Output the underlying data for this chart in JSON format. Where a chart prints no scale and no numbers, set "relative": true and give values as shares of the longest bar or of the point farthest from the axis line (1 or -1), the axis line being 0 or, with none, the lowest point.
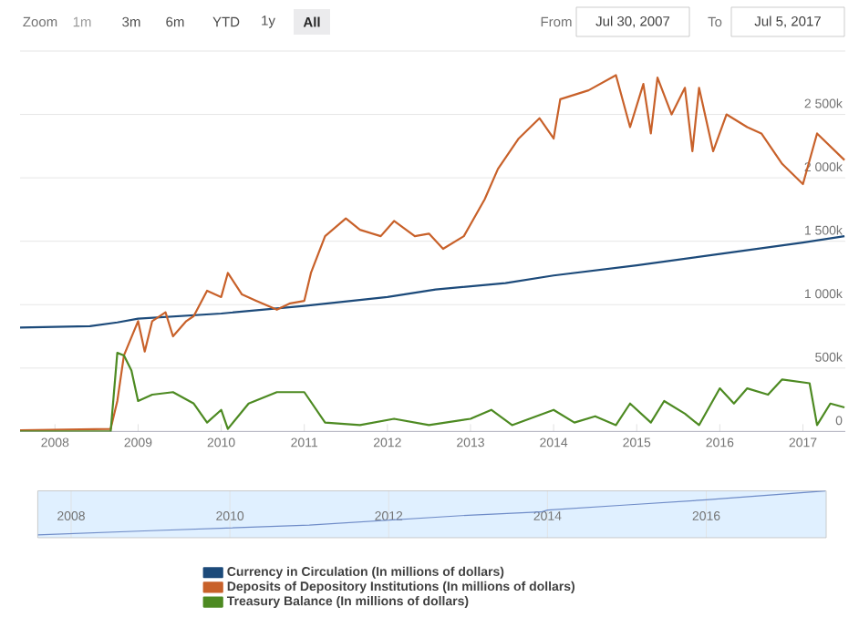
{
  "chart_data": [
    {
      "type": "line",
      "xlim": [
        "2007-07-30",
        "2017-07-05"
      ],
      "ylim": [
        0,
        3000000
      ],
      "xticks": [
        "2008",
        "2009",
        "2010",
        "2011",
        "2012",
        "2013",
        "2014",
        "2015",
        "2016",
        "2017"
      ],
      "yticks": [
        {
          "value": 0,
          "label": "0"
        },
        {
          "value": 500000,
          "label": "500k"
        },
        {
          "value": 1000000,
          "label": "1 000k"
        },
        {
          "value": 1500000,
          "label": "1 500k"
        },
        {
          "value": 2000000,
          "label": "2 000k"
        },
        {
          "value": 2500000,
          "label": "2 500k"
        },
        {
          "value": 3000000,
          "label": null
        }
      ],
      "grid": "y",
      "legend": "bottom",
      "annotations": [
        "Zoom",
        "1m",
        "3m",
        "6m",
        "YTD",
        "1y",
        "All",
        "From",
        "Jul 30, 2007",
        "To",
        "Jul 5, 2017"
      ],
      "series": [
        {
          "name": "Currency in Circulation (In millions of dollars)",
          "color": "#1c4a7a",
          "x": [
            "2007-08",
            "2008-06",
            "2008-10",
            "2009-01",
            "2010-01",
            "2011-01",
            "2012-01",
            "2012-08",
            "2013-06",
            "2014-01",
            "2015-01",
            "2016-01",
            "2017-01",
            "2017-07"
          ],
          "values": [
            820000,
            830000,
            860000,
            890000,
            930000,
            990000,
            1060000,
            1120000,
            1170000,
            1230000,
            1310000,
            1400000,
            1490000,
            1540000
          ]
        },
        {
          "name": "Deposits of Depository Institutions (In millions of dollars)",
          "color": "#c8612a",
          "x": [
            "2007-08",
            "2008-09",
            "2008-10",
            "2008-11",
            "2009-01",
            "2009-02",
            "2009-03",
            "2009-05",
            "2009-06",
            "2009-08",
            "2009-09",
            "2009-11",
            "2010-01",
            "2010-02",
            "2010-04",
            "2010-06",
            "2010-09",
            "2010-11",
            "2011-01",
            "2011-02",
            "2011-04",
            "2011-07",
            "2011-09",
            "2011-12",
            "2012-02",
            "2012-05",
            "2012-07",
            "2012-09",
            "2012-12",
            "2013-03",
            "2013-05",
            "2013-08",
            "2013-11",
            "2014-01",
            "2014-02",
            "2014-06",
            "2014-10",
            "2014-12",
            "2015-02",
            "2015-03",
            "2015-04",
            "2015-06",
            "2015-08",
            "2015-09",
            "2015-10",
            "2015-12",
            "2016-02",
            "2016-05",
            "2016-07",
            "2016-10",
            "2017-01",
            "2017-03",
            "2017-07"
          ],
          "values": [
            10000,
            20000,
            240000,
            600000,
            870000,
            630000,
            870000,
            940000,
            750000,
            870000,
            910000,
            1110000,
            1060000,
            1250000,
            1080000,
            1030000,
            960000,
            1010000,
            1030000,
            1250000,
            1540000,
            1680000,
            1590000,
            1540000,
            1660000,
            1540000,
            1560000,
            1440000,
            1540000,
            1830000,
            2070000,
            2310000,
            2470000,
            2310000,
            2620000,
            2690000,
            2810000,
            2400000,
            2740000,
            2350000,
            2790000,
            2500000,
            2710000,
            2210000,
            2710000,
            2210000,
            2500000,
            2400000,
            2350000,
            2110000,
            1950000,
            2350000,
            2140000
          ]
        },
        {
          "name": "Treasury Balance (In millions of dollars)",
          "color": "#4d8a22",
          "x": [
            "2007-08",
            "2008-09",
            "2008-10",
            "2008-11",
            "2008-12",
            "2009-01",
            "2009-03",
            "2009-06",
            "2009-09",
            "2009-11",
            "2010-01",
            "2010-02",
            "2010-05",
            "2010-09",
            "2011-01",
            "2011-04",
            "2011-09",
            "2012-02",
            "2012-07",
            "2013-01",
            "2013-04",
            "2013-07",
            "2014-01",
            "2014-04",
            "2014-07",
            "2014-10",
            "2014-12",
            "2015-03",
            "2015-05",
            "2015-08",
            "2015-10",
            "2016-01",
            "2016-03",
            "2016-05",
            "2016-08",
            "2016-10",
            "2017-02",
            "2017-03",
            "2017-05",
            "2017-07"
          ],
          "values": [
            0,
            0,
            620000,
            600000,
            480000,
            240000,
            290000,
            310000,
            220000,
            70000,
            170000,
            20000,
            220000,
            310000,
            310000,
            70000,
            50000,
            100000,
            50000,
            100000,
            170000,
            50000,
            170000,
            70000,
            120000,
            50000,
            220000,
            70000,
            240000,
            140000,
            50000,
            340000,
            220000,
            340000,
            290000,
            410000,
            380000,
            50000,
            220000,
            190000
          ]
        }
      ]
    },
    {
      "type": "line",
      "relative": true,
      "xlim": [
        "2007-07-30",
        "2017-07-05"
      ],
      "xticks": [
        "2008",
        "2010",
        "2012",
        "2014",
        "2016"
      ],
      "tick_labels": "x",
      "grid": "x",
      "series": [
        {
          "color": "#6f8cc8",
          "x": [
            "2007-08",
            "2009-01",
            "2011-01",
            "2013-01",
            "2013-12",
            "2014-01",
            "2015-01",
            "2016-01",
            "2017-07"
          ],
          "values": [
            0.06,
            0.15,
            0.27,
            0.48,
            0.55,
            0.59,
            0.7,
            0.81,
            1
          ]
        }
      ]
    }
  ]
}
